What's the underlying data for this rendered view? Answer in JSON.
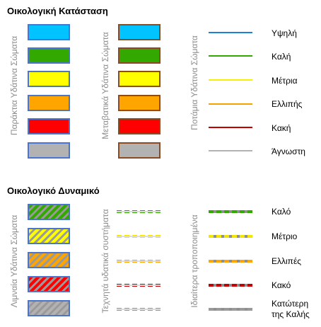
{
  "status": {
    "title": "Οικολογική Κατάσταση",
    "groups": [
      "Παράκτια Υδάτινα Σώματα",
      "Μεταβατικά Υδάτινα Σώματα",
      "Ποτάμια Υδάτινα Σώματα"
    ],
    "classes": [
      {
        "label": "Υψηλή",
        "color": "#00c3ff"
      },
      {
        "label": "Καλή",
        "color": "#33a800"
      },
      {
        "label": "Μέτρια",
        "color": "#ffff00"
      },
      {
        "label": "Ελλιπής",
        "color": "#ffa500"
      },
      {
        "label": "Κακή",
        "color": "#ff0000"
      },
      {
        "label": "Άγνωστη",
        "color": "#b2b2b2"
      }
    ],
    "line_colors": [
      "#1b82d6",
      "#33a800",
      "#f7f000",
      "#f5a200",
      "#c40000",
      "#b2b2b2"
    ]
  },
  "potential": {
    "title": "Οικολογικό Δυναμικό",
    "groups": [
      "Λιμναία Υδάτινα Σώματα",
      "Τεχνητά υδατικά συστήματα",
      "Ιδιαίτερα τροποποιημένα"
    ],
    "classes": [
      {
        "label": "Καλό",
        "color": "#33a800"
      },
      {
        "label": "Μέτριο",
        "color": "#ffff00"
      },
      {
        "label": "Ελλιπές",
        "color": "#ffa500"
      },
      {
        "label": "Κακό",
        "color": "#ff0000"
      },
      {
        "label": "Κατώτερη της Καλής",
        "color": "#b2b2b2"
      }
    ]
  }
}
